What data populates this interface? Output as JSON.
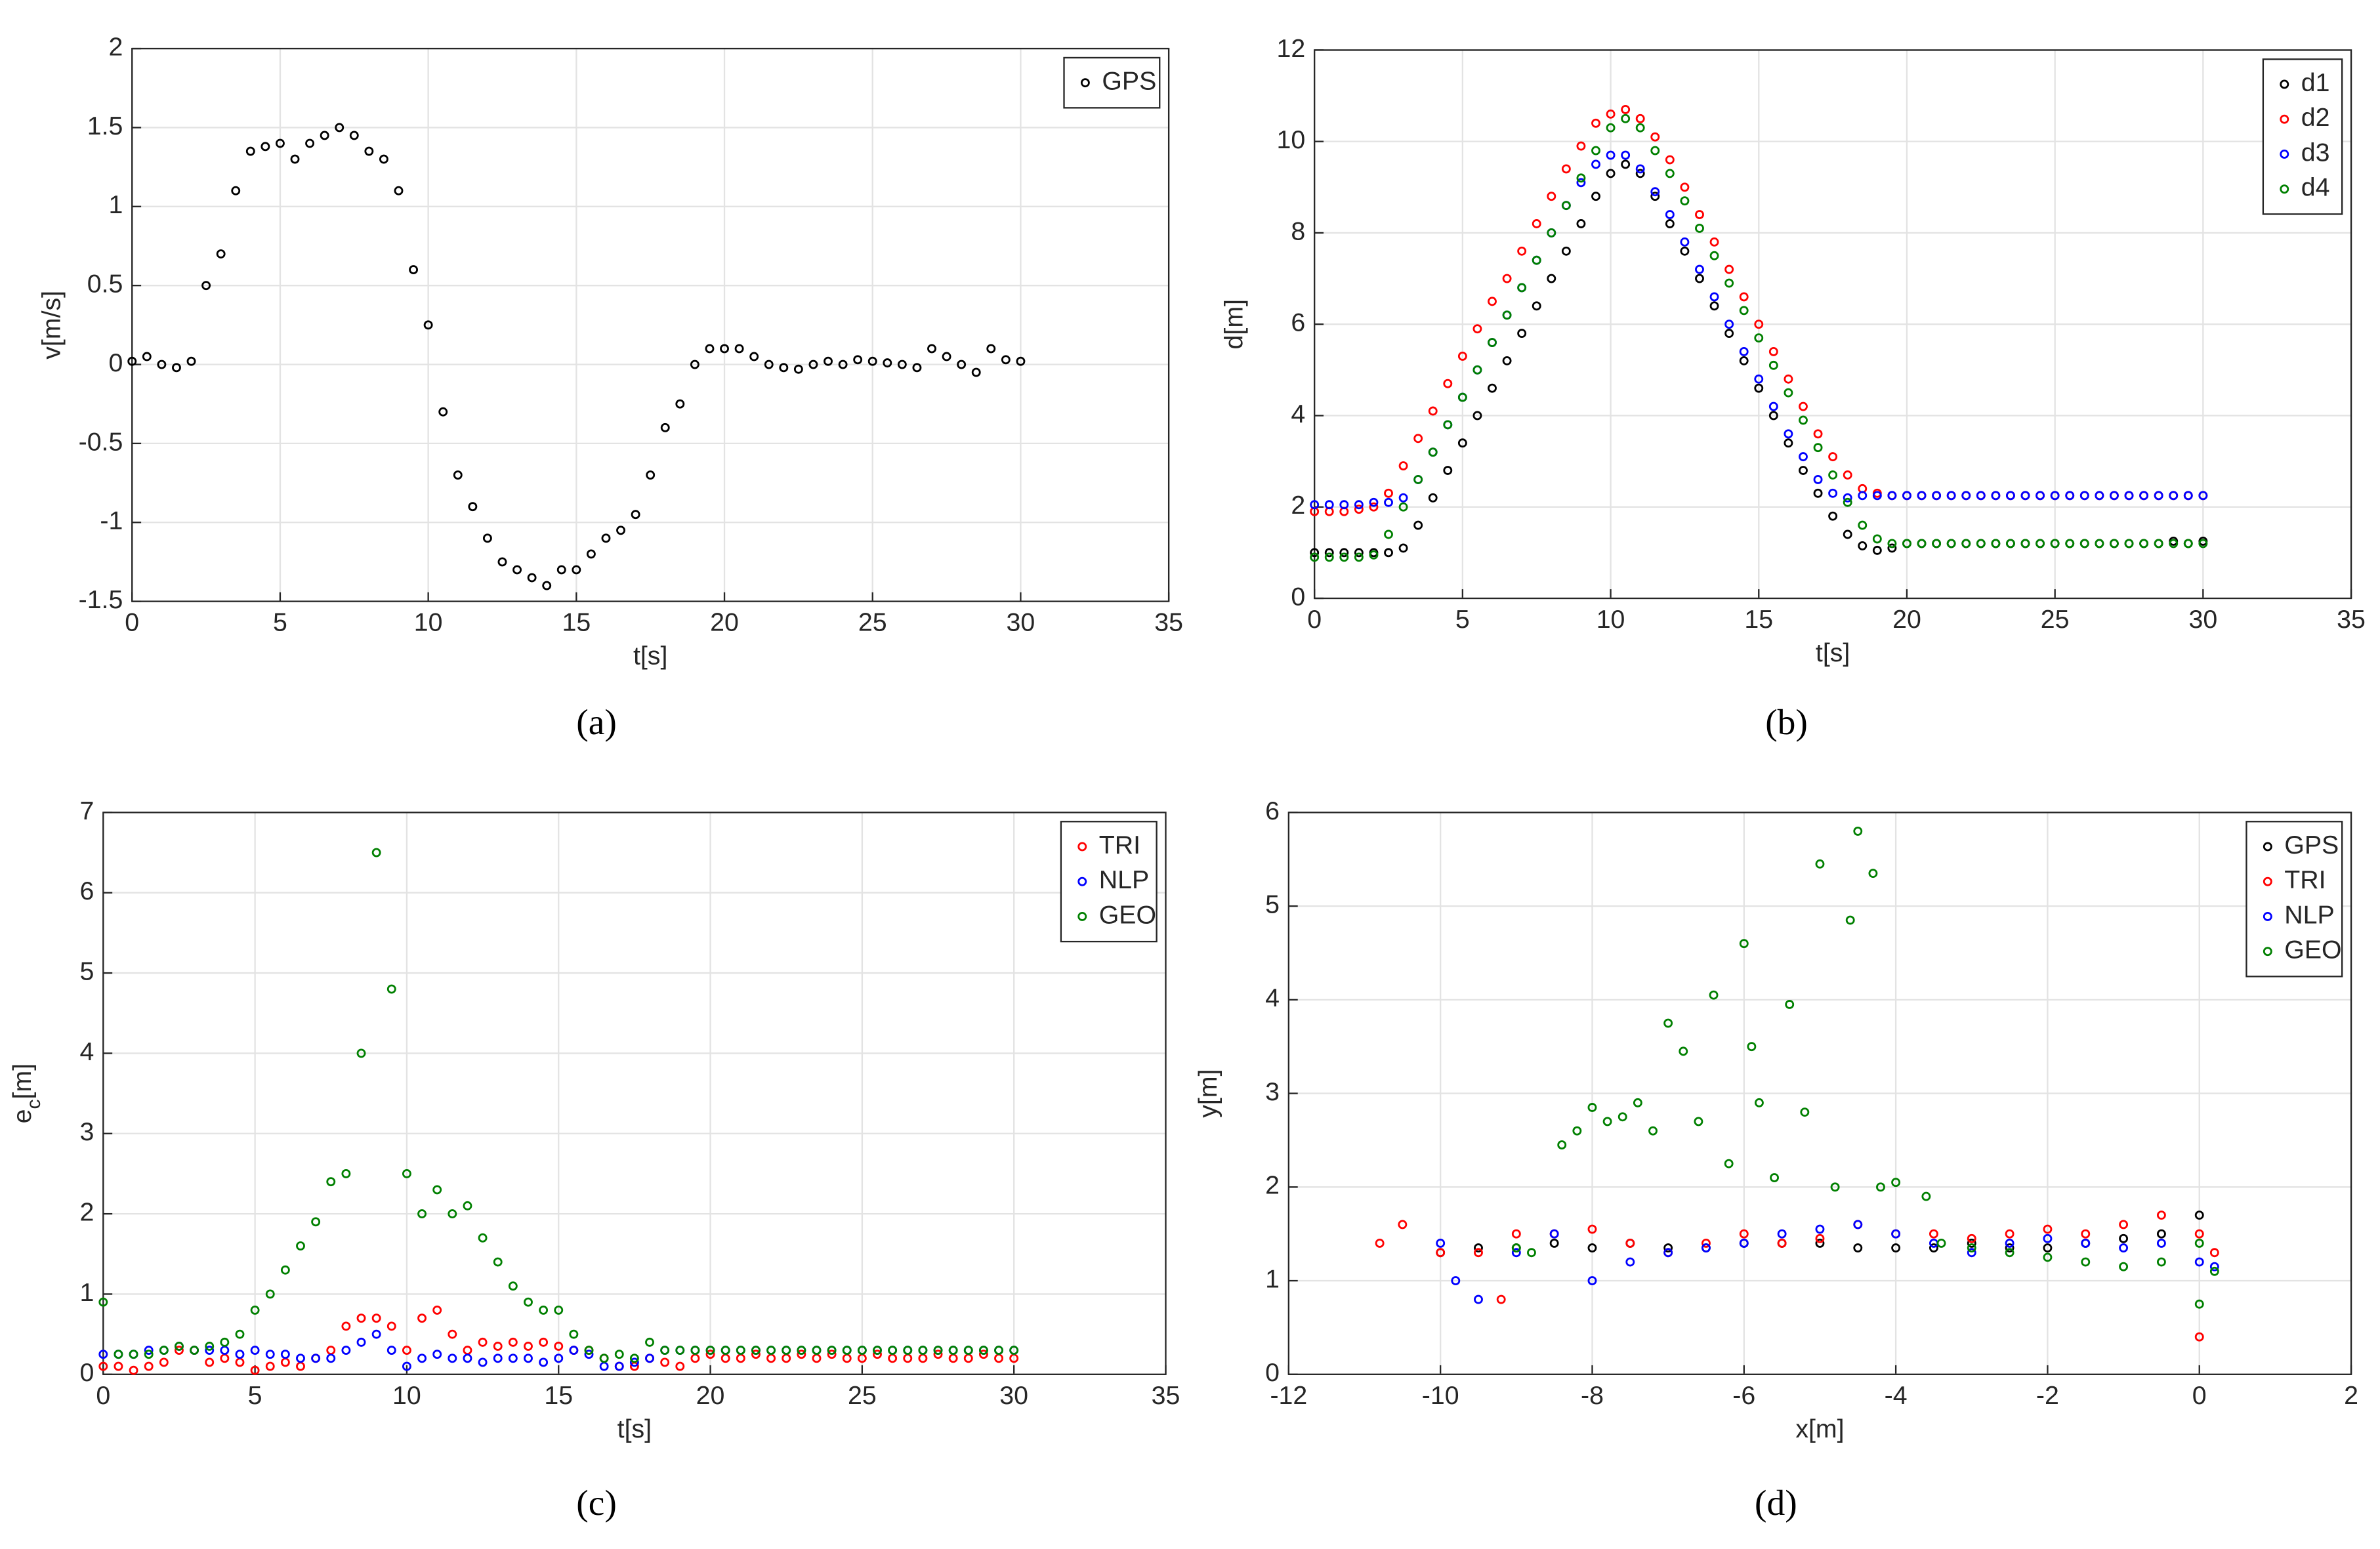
{
  "chart_data": [
    {
      "type": "scatter",
      "caption": "(a)",
      "xlabel": "t[s]",
      "ylabel": "v[m/s]",
      "xlim": [
        0,
        35
      ],
      "xticks": [
        0,
        5,
        10,
        15,
        20,
        25,
        30,
        35
      ],
      "ylim": [
        -1.5,
        2
      ],
      "yticks": [
        -1.5,
        -1,
        -0.5,
        0,
        0.5,
        1,
        1.5,
        2
      ],
      "grid": true,
      "legend": "upper right",
      "x": [
        0,
        0.5,
        1,
        1.5,
        2,
        2.5,
        3,
        3.5,
        4,
        4.5,
        5,
        5.5,
        6,
        6.5,
        7,
        7.5,
        8,
        8.5,
        9,
        9.5,
        10,
        10.5,
        11,
        11.5,
        12,
        12.5,
        13,
        13.5,
        14,
        14.5,
        15,
        15.5,
        16,
        16.5,
        17,
        17.5,
        18,
        18.5,
        19,
        19.5,
        20,
        20.5,
        21,
        21.5,
        22,
        22.5,
        23,
        23.5,
        24,
        24.5,
        25,
        25.5,
        26,
        26.5,
        27,
        27.5,
        28,
        28.5,
        29,
        29.5,
        30
      ],
      "series": [
        {
          "name": "GPS",
          "color": "#000000",
          "values": [
            0.02,
            0.05,
            0,
            -0.02,
            0.02,
            0.5,
            0.7,
            1.1,
            1.35,
            1.38,
            1.4,
            1.3,
            1.4,
            1.45,
            1.5,
            1.45,
            1.35,
            1.3,
            1.1,
            0.6,
            0.25,
            -0.3,
            -0.7,
            -0.9,
            -1.1,
            -1.25,
            -1.3,
            -1.35,
            -1.4,
            -1.3,
            -1.3,
            -1.2,
            -1.1,
            -1.05,
            -0.95,
            -0.7,
            -0.4,
            -0.25,
            0,
            0.1,
            0.1,
            0.1,
            0.05,
            0,
            -0.02,
            -0.03,
            0,
            0.02,
            0,
            0.03,
            0.02,
            0.01,
            0,
            -0.02,
            0.1,
            0.05,
            0,
            -0.05,
            0.1,
            0.03,
            0.02
          ]
        }
      ]
    },
    {
      "type": "scatter",
      "caption": "(b)",
      "xlabel": "t[s]",
      "ylabel": "d[m]",
      "xlim": [
        0,
        35
      ],
      "xticks": [
        0,
        5,
        10,
        15,
        20,
        25,
        30,
        35
      ],
      "ylim": [
        0,
        12
      ],
      "yticks": [
        0,
        2,
        4,
        6,
        8,
        10,
        12
      ],
      "grid": true,
      "legend": "upper right",
      "x": [
        0,
        0.5,
        1,
        1.5,
        2,
        2.5,
        3,
        3.5,
        4,
        4.5,
        5,
        5.5,
        6,
        6.5,
        7,
        7.5,
        8,
        8.5,
        9,
        9.5,
        10,
        10.5,
        11,
        11.5,
        12,
        12.5,
        13,
        13.5,
        14,
        14.5,
        15,
        15.5,
        16,
        16.5,
        17,
        17.5,
        18,
        18.5,
        19,
        19.5,
        20,
        20.5,
        21,
        21.5,
        22,
        22.5,
        23,
        23.5,
        24,
        24.5,
        25,
        25.5,
        26,
        26.5,
        27,
        27.5,
        28,
        28.5,
        29,
        29.5,
        30
      ],
      "series": [
        {
          "name": "d1",
          "color": "#000000",
          "values": [
            1,
            1,
            1,
            1,
            1,
            1,
            1.1,
            1.6,
            2.2,
            2.8,
            3.4,
            4.0,
            4.6,
            5.2,
            5.8,
            6.4,
            7.0,
            7.6,
            8.2,
            8.8,
            9.3,
            9.5,
            9.3,
            8.8,
            8.2,
            7.6,
            7.0,
            6.4,
            5.8,
            5.2,
            4.6,
            4.0,
            3.4,
            2.8,
            2.3,
            1.8,
            1.4,
            1.15,
            1.05,
            1.1,
            1.2,
            1.2,
            1.2,
            1.2,
            1.2,
            1.2,
            1.2,
            1.2,
            1.2,
            1.2,
            1.2,
            1.2,
            1.2,
            1.2,
            1.2,
            1.2,
            1.2,
            1.2,
            1.25,
            1.2,
            1.25
          ]
        },
        {
          "name": "d2",
          "color": "#ff0000",
          "values": [
            1.9,
            1.9,
            1.9,
            1.95,
            2.0,
            2.3,
            2.9,
            3.5,
            4.1,
            4.7,
            5.3,
            5.9,
            6.5,
            7.0,
            7.6,
            8.2,
            8.8,
            9.4,
            9.9,
            10.4,
            10.6,
            10.7,
            10.5,
            10.1,
            9.6,
            9.0,
            8.4,
            7.8,
            7.2,
            6.6,
            6.0,
            5.4,
            4.8,
            4.2,
            3.6,
            3.1,
            2.7,
            2.4,
            2.3,
            2.25,
            2.25,
            2.25,
            2.25,
            2.25,
            2.25,
            2.25,
            2.25,
            2.25,
            2.25,
            2.25,
            2.25,
            2.25,
            2.25,
            2.25,
            2.25,
            2.25,
            2.25,
            2.25,
            2.25,
            2.25,
            2.25
          ]
        },
        {
          "name": "d3",
          "color": "#0000ff",
          "values": [
            2.05,
            2.05,
            2.05,
            2.05,
            2.1,
            2.1,
            2.2,
            2.6,
            3.2,
            3.8,
            4.4,
            5.0,
            5.6,
            6.2,
            6.8,
            7.4,
            8.0,
            8.6,
            9.1,
            9.5,
            9.7,
            9.7,
            9.4,
            8.9,
            8.4,
            7.8,
            7.2,
            6.6,
            6.0,
            5.4,
            4.8,
            4.2,
            3.6,
            3.1,
            2.6,
            2.3,
            2.2,
            2.25,
            2.25,
            2.25,
            2.25,
            2.25,
            2.25,
            2.25,
            2.25,
            2.25,
            2.25,
            2.25,
            2.25,
            2.25,
            2.25,
            2.25,
            2.25,
            2.25,
            2.25,
            2.25,
            2.25,
            2.25,
            2.25,
            2.25,
            2.25
          ]
        },
        {
          "name": "d4",
          "color": "#008000",
          "values": [
            0.9,
            0.9,
            0.9,
            0.9,
            0.95,
            1.4,
            2.0,
            2.6,
            3.2,
            3.8,
            4.4,
            5.0,
            5.6,
            6.2,
            6.8,
            7.4,
            8.0,
            8.6,
            9.2,
            9.8,
            10.3,
            10.5,
            10.3,
            9.8,
            9.3,
            8.7,
            8.1,
            7.5,
            6.9,
            6.3,
            5.7,
            5.1,
            4.5,
            3.9,
            3.3,
            2.7,
            2.1,
            1.6,
            1.3,
            1.2,
            1.2,
            1.2,
            1.2,
            1.2,
            1.2,
            1.2,
            1.2,
            1.2,
            1.2,
            1.2,
            1.2,
            1.2,
            1.2,
            1.2,
            1.2,
            1.2,
            1.2,
            1.2,
            1.2,
            1.2,
            1.2
          ]
        }
      ]
    },
    {
      "type": "scatter",
      "caption": "(c)",
      "xlabel": "t[s]",
      "ylabel": [
        "e",
        "c",
        "[m]"
      ],
      "xlim": [
        0,
        35
      ],
      "xticks": [
        0,
        5,
        10,
        15,
        20,
        25,
        30,
        35
      ],
      "ylim": [
        0,
        7
      ],
      "yticks": [
        0,
        1,
        2,
        3,
        4,
        5,
        6,
        7
      ],
      "grid": true,
      "legend": "upper right",
      "x": [
        0,
        0.5,
        1,
        1.5,
        2,
        2.5,
        3,
        3.5,
        4,
        4.5,
        5,
        5.5,
        6,
        6.5,
        7,
        7.5,
        8,
        8.5,
        9,
        9.5,
        10,
        10.5,
        11,
        11.5,
        12,
        12.5,
        13,
        13.5,
        14,
        14.5,
        15,
        15.5,
        16,
        16.5,
        17,
        17.5,
        18,
        18.5,
        19,
        19.5,
        20,
        20.5,
        21,
        21.5,
        22,
        22.5,
        23,
        23.5,
        24,
        24.5,
        25,
        25.5,
        26,
        26.5,
        27,
        27.5,
        28,
        28.5,
        29,
        29.5,
        30
      ],
      "series": [
        {
          "name": "TRI",
          "color": "#ff0000",
          "values": [
            0.1,
            0.1,
            0.05,
            0.1,
            0.15,
            0.3,
            0.3,
            0.15,
            0.2,
            0.15,
            0.05,
            0.1,
            0.15,
            0.1,
            0.2,
            0.3,
            0.6,
            0.7,
            0.7,
            0.6,
            0.3,
            0.7,
            0.8,
            0.5,
            0.3,
            0.4,
            0.35,
            0.4,
            0.35,
            0.4,
            0.35,
            0.3,
            0.3,
            0.2,
            0.1,
            0.1,
            0.2,
            0.15,
            0.1,
            0.2,
            0.25,
            0.2,
            0.2,
            0.25,
            0.2,
            0.2,
            0.25,
            0.2,
            0.25,
            0.2,
            0.2,
            0.25,
            0.2,
            0.2,
            0.2,
            0.25,
            0.2,
            0.2,
            0.25,
            0.2,
            0.2
          ]
        },
        {
          "name": "NLP",
          "color": "#0000ff",
          "values": [
            0.25,
            0.25,
            0.25,
            0.3,
            0.3,
            0.35,
            0.3,
            0.3,
            0.3,
            0.25,
            0.3,
            0.25,
            0.25,
            0.2,
            0.2,
            0.2,
            0.3,
            0.4,
            0.5,
            0.3,
            0.1,
            0.2,
            0.25,
            0.2,
            0.2,
            0.15,
            0.2,
            0.2,
            0.2,
            0.15,
            0.2,
            0.3,
            0.25,
            0.1,
            0.1,
            0.15,
            0.2,
            0.3,
            0.3,
            0.3,
            0.3,
            0.3,
            0.3,
            0.3,
            0.3,
            0.3,
            0.3,
            0.3,
            0.3,
            0.3,
            0.3,
            0.3,
            0.3,
            0.3,
            0.3,
            0.3,
            0.3,
            0.3,
            0.3,
            0.3,
            0.3
          ]
        },
        {
          "name": "GEO",
          "color": "#008000",
          "values": [
            0.9,
            0.25,
            0.25,
            0.25,
            0.3,
            0.35,
            0.3,
            0.35,
            0.4,
            0.5,
            0.8,
            1.0,
            1.3,
            1.6,
            1.9,
            2.4,
            2.5,
            4.0,
            6.5,
            4.8,
            2.5,
            2.0,
            2.3,
            2.0,
            2.1,
            1.7,
            1.4,
            1.1,
            0.9,
            0.8,
            0.8,
            0.5,
            0.3,
            0.2,
            0.25,
            0.2,
            0.4,
            0.3,
            0.3,
            0.3,
            0.3,
            0.3,
            0.3,
            0.3,
            0.3,
            0.3,
            0.3,
            0.3,
            0.3,
            0.3,
            0.3,
            0.3,
            0.3,
            0.3,
            0.3,
            0.3,
            0.3,
            0.3,
            0.3,
            0.3,
            0.3
          ]
        }
      ]
    },
    {
      "type": "scatter",
      "caption": "(d)",
      "xlabel": "x[m]",
      "ylabel": "y[m]",
      "xlim": [
        -12,
        2
      ],
      "xticks": [
        -12,
        -10,
        -8,
        -6,
        -4,
        -2,
        0,
        2
      ],
      "ylim": [
        0,
        6
      ],
      "yticks": [
        0,
        1,
        2,
        3,
        4,
        5,
        6
      ],
      "grid": true,
      "legend": "upper right",
      "series": [
        {
          "name": "GPS",
          "color": "#000000",
          "x": [
            -10,
            -9.5,
            -9,
            -8.5,
            -8,
            -7.5,
            -7,
            -6.5,
            -6,
            -5.5,
            -5,
            -4.5,
            -4,
            -3.5,
            -3,
            -2.5,
            -2,
            -1.5,
            -1,
            -0.5,
            0
          ],
          "values": [
            1.3,
            1.35,
            1.35,
            1.4,
            1.35,
            1.4,
            1.35,
            1.35,
            1.4,
            1.4,
            1.4,
            1.35,
            1.35,
            1.35,
            1.4,
            1.35,
            1.35,
            1.4,
            1.45,
            1.5,
            1.7
          ]
        },
        {
          "name": "TRI",
          "color": "#ff0000",
          "x": [
            -10.8,
            -10.5,
            -10,
            -9.5,
            -9.2,
            -9,
            -8.5,
            -8,
            -7.5,
            -7,
            -6.5,
            -6,
            -5.5,
            -5,
            -4.5,
            -4,
            -3.5,
            -3,
            -2.5,
            -2,
            -1.5,
            -1,
            -0.5,
            0,
            0,
            0.2
          ],
          "values": [
            1.4,
            1.6,
            1.3,
            1.3,
            0.8,
            1.5,
            1.5,
            1.55,
            1.4,
            1.3,
            1.4,
            1.5,
            1.4,
            1.45,
            1.6,
            1.5,
            1.5,
            1.45,
            1.5,
            1.55,
            1.5,
            1.6,
            1.7,
            1.5,
            0.4,
            1.3
          ]
        },
        {
          "name": "NLP",
          "color": "#0000ff",
          "x": [
            -10,
            -9.8,
            -9.5,
            -9,
            -8.5,
            -8,
            -7.5,
            -7,
            -6.5,
            -6,
            -5.5,
            -5,
            -4.5,
            -4,
            -3.5,
            -3,
            -2.5,
            -2,
            -1.5,
            -1,
            -0.5,
            0,
            0.2
          ],
          "values": [
            1.4,
            1.0,
            0.8,
            1.3,
            1.5,
            1.0,
            1.2,
            1.3,
            1.35,
            1.4,
            1.5,
            1.55,
            1.6,
            1.5,
            1.4,
            1.3,
            1.4,
            1.45,
            1.4,
            1.35,
            1.4,
            1.2,
            1.15
          ]
        },
        {
          "name": "GEO",
          "color": "#008000",
          "x": [
            -9,
            -8.8,
            -8.4,
            -8.2,
            -8,
            -7.8,
            -7.6,
            -7.4,
            -7.2,
            -7,
            -6.8,
            -6.6,
            -6.4,
            -6.2,
            -6,
            -5.9,
            -5.8,
            -5.6,
            -5.4,
            -5.2,
            -5,
            -4.8,
            -4.6,
            -4.5,
            -4.3,
            -4.2,
            -4,
            -3.6,
            -3.4,
            -3,
            -2.5,
            -2,
            -1.5,
            -1,
            -0.5,
            0,
            0,
            0.2
          ],
          "values": [
            1.35,
            1.3,
            2.45,
            2.6,
            2.85,
            2.7,
            2.75,
            2.9,
            2.6,
            3.75,
            3.45,
            2.7,
            4.05,
            2.25,
            4.6,
            3.5,
            2.9,
            2.1,
            3.95,
            2.8,
            5.45,
            2.0,
            4.85,
            5.8,
            5.35,
            2.0,
            2.05,
            1.9,
            1.4,
            1.35,
            1.3,
            1.25,
            1.2,
            1.15,
            1.2,
            1.4,
            0.75,
            1.1
          ]
        }
      ]
    }
  ]
}
